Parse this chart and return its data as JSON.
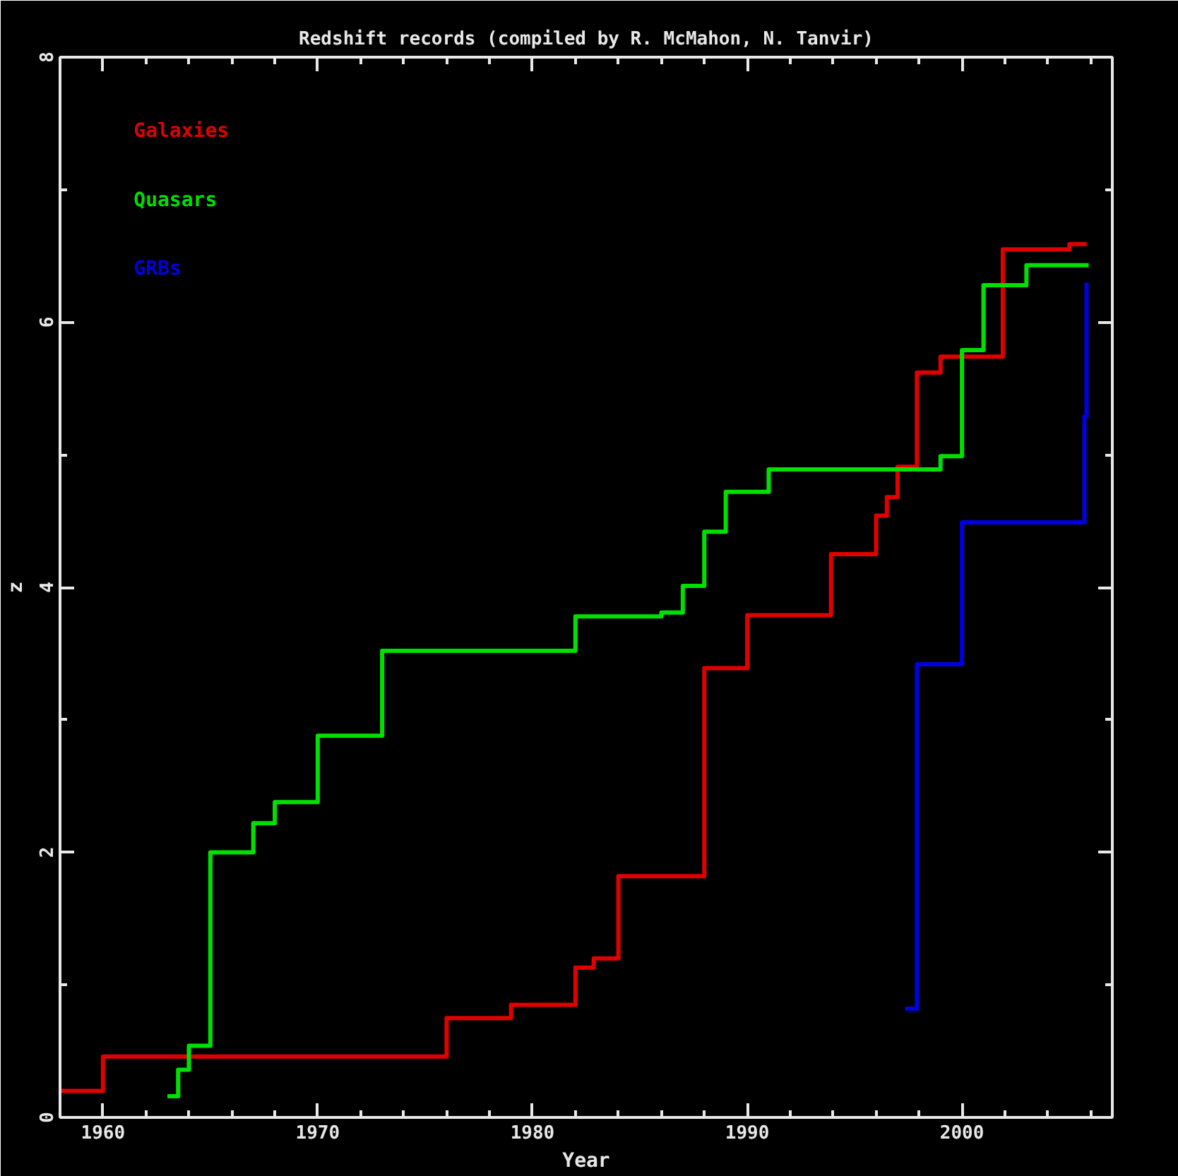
{
  "chart_data": {
    "type": "step",
    "title": "Redshift records (compiled by R. McMahon, N. Tanvir)",
    "xlabel": "Year",
    "ylabel": "z",
    "xlim": [
      1958,
      2007
    ],
    "xticks": [
      1960,
      1970,
      1980,
      1990,
      2000
    ],
    "ylim": [
      0,
      8
    ],
    "yticks": [
      0,
      2,
      4,
      6,
      8
    ],
    "grid": false,
    "legend": "top left",
    "series": [
      {
        "name": "Galaxies",
        "color": "#e00000",
        "x": [
          1958,
          1960,
          1976,
          1979,
          1982,
          1982.85,
          1984,
          1988,
          1990,
          1993.9,
          1996,
          1996.5,
          1997,
          1997.9,
          1999,
          2001.9,
          2005,
          2005.8
        ],
        "values": [
          0.2,
          0.46,
          0.75,
          0.85,
          1.13,
          1.2,
          1.82,
          3.39,
          3.79,
          4.25,
          4.54,
          4.68,
          4.91,
          5.62,
          5.74,
          6.55,
          6.59,
          6.59
        ]
      },
      {
        "name": "Quasars",
        "color": "#00e000",
        "x": [
          1963,
          1963.5,
          1964,
          1965,
          1967,
          1968,
          1970,
          1973,
          1982,
          1986,
          1987,
          1988,
          1989,
          1991,
          1999,
          2000,
          2001,
          2003,
          2005.9
        ],
        "values": [
          0.16,
          0.36,
          0.54,
          2.0,
          2.22,
          2.38,
          2.88,
          3.52,
          3.78,
          3.81,
          4.01,
          4.42,
          4.72,
          4.89,
          4.99,
          5.79,
          6.28,
          6.43,
          6.43
        ]
      },
      {
        "name": "GRBs",
        "color": "#0000e0",
        "x": [
          1997.35,
          1997.9,
          2000,
          2005.7,
          2005.8
        ],
        "values": [
          0.82,
          3.42,
          4.49,
          5.29,
          6.3
        ]
      }
    ]
  }
}
